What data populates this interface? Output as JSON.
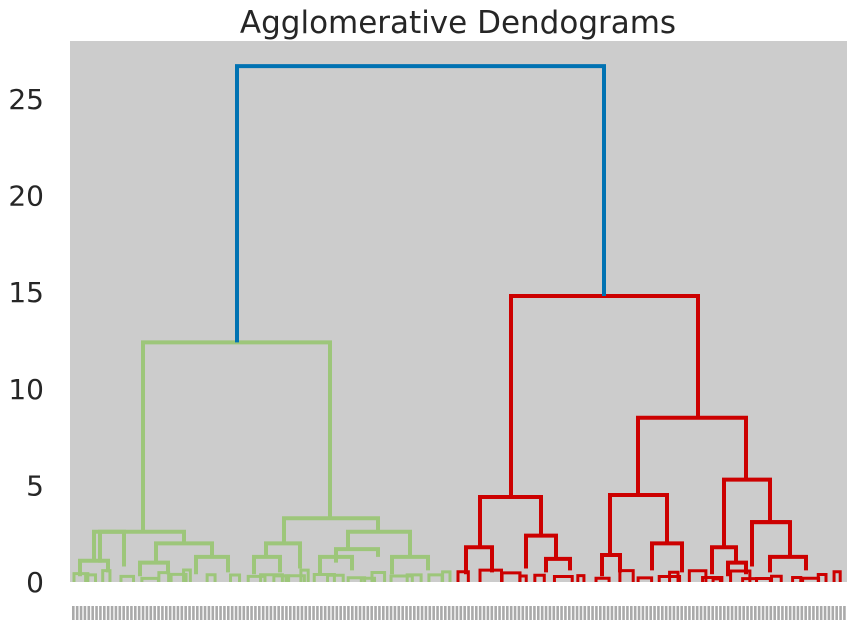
{
  "chart_data": {
    "type": "dendrogram",
    "title": "Agglomerative Dendograms",
    "xlabel": "",
    "ylabel": "",
    "ylim": [
      0,
      28
    ],
    "yticks": [
      0,
      5,
      10,
      15,
      20,
      25
    ],
    "grid": false,
    "background": "#cccccc",
    "colors": {
      "root": "#0072b2",
      "cluster_left": "#9dc67a",
      "cluster_right": "#cc0000",
      "text": "#262626"
    },
    "leaf_count": 200,
    "clusters": [
      {
        "name": "",
        "color": "#9dc67a",
        "height": 12.4,
        "sub_merges": [
          {
            "height": 2.6,
            "children": [
              1.1,
              2.0
            ]
          },
          {
            "height": 3.3,
            "children": [
              2.0,
              2.6
            ]
          }
        ]
      },
      {
        "name": "",
        "color": "#cc0000",
        "height": 14.8,
        "sub_merges": [
          {
            "height": 4.4,
            "children": [
              1.8,
              2.4
            ]
          },
          {
            "height": 8.5,
            "children": [
              4.5,
              5.3
            ]
          },
          {
            "height": 4.5,
            "children": [
              1.4,
              2.0
            ]
          },
          {
            "height": 5.3,
            "children": [
              1.8,
              3.1
            ]
          }
        ]
      }
    ],
    "root_height": 26.7
  }
}
